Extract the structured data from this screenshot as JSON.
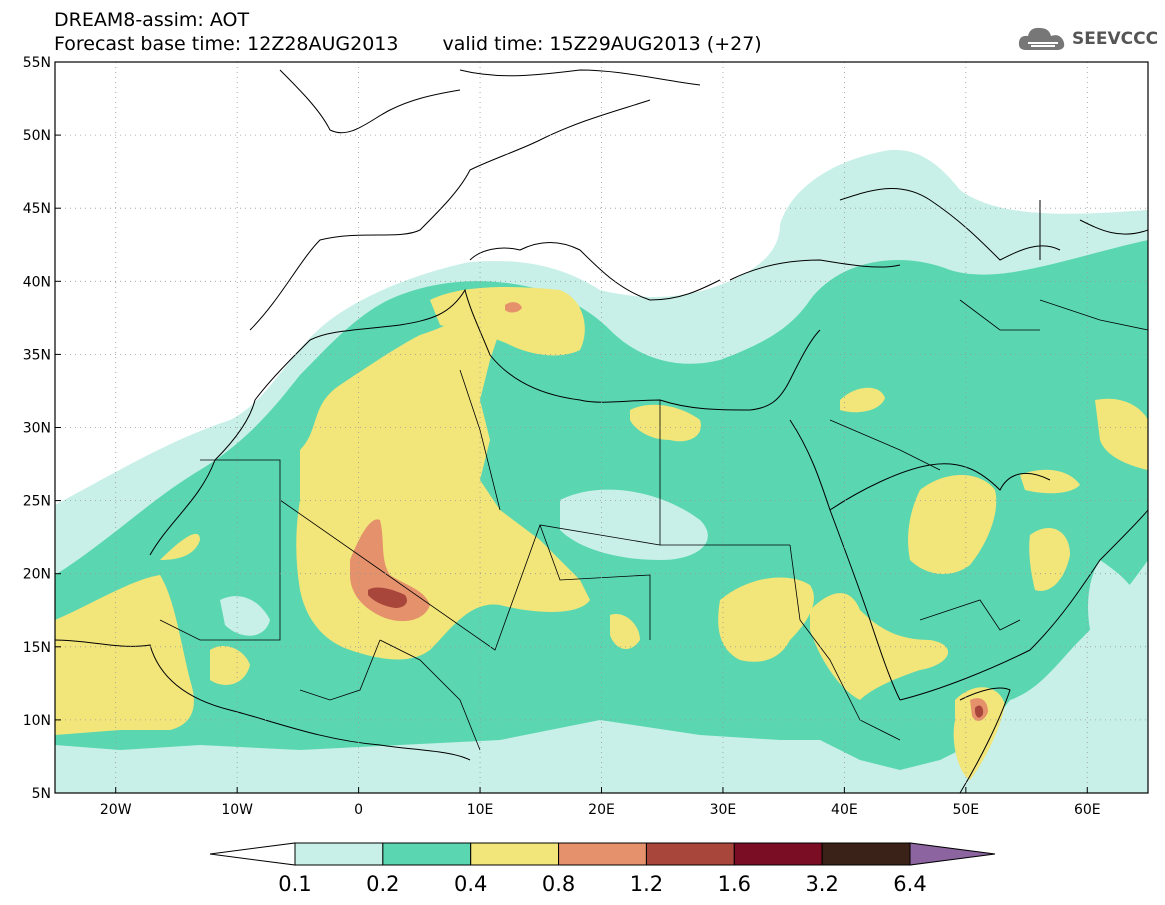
{
  "header": {
    "line1": "DREAM8-assim: AOT",
    "base_time_label": "Forecast base time: 12Z28AUG2013",
    "valid_time_label": "valid time: 15Z29AUG2013 (+27)"
  },
  "logo": {
    "text": "SEEVCCC",
    "icon": "cloud-icon"
  },
  "map": {
    "lon_range": [
      -25,
      65
    ],
    "lat_range": [
      5,
      55
    ],
    "lat_ticks": [
      "55N",
      "50N",
      "45N",
      "40N",
      "35N",
      "30N",
      "25N",
      "20N",
      "15N",
      "10N",
      "5N"
    ],
    "lon_ticks": [
      "20W",
      "10W",
      "0",
      "10E",
      "20E",
      "30E",
      "40E",
      "50E",
      "60E"
    ],
    "grid": "dotted"
  },
  "colorbar": {
    "levels": [
      "0.1",
      "0.2",
      "0.4",
      "0.8",
      "1.2",
      "1.6",
      "3.2",
      "6.4"
    ],
    "colors": [
      "#c8f0e8",
      "#5ad7b0",
      "#f2e57a",
      "#e4916c",
      "#a8463c",
      "#7a0c24",
      "#3a2218",
      "#8c64a0"
    ]
  }
}
